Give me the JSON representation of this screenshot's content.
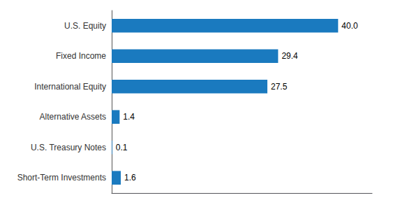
{
  "chart_data": {
    "type": "bar",
    "orientation": "horizontal",
    "categories": [
      "U.S. Equity",
      "Fixed Income",
      "International Equity",
      "Alternative Assets",
      "U.S. Treasury Notes",
      "Short-Term Investments"
    ],
    "values": [
      40.0,
      29.4,
      27.5,
      1.4,
      0.1,
      1.6
    ],
    "value_labels": [
      "40.0",
      "29.4",
      "27.5",
      "1.4",
      "0.1",
      "1.6"
    ],
    "color": "#1a7abf",
    "xlim": [
      0,
      46
    ],
    "data_labels": true,
    "tick_labels": "y",
    "grid": false
  }
}
